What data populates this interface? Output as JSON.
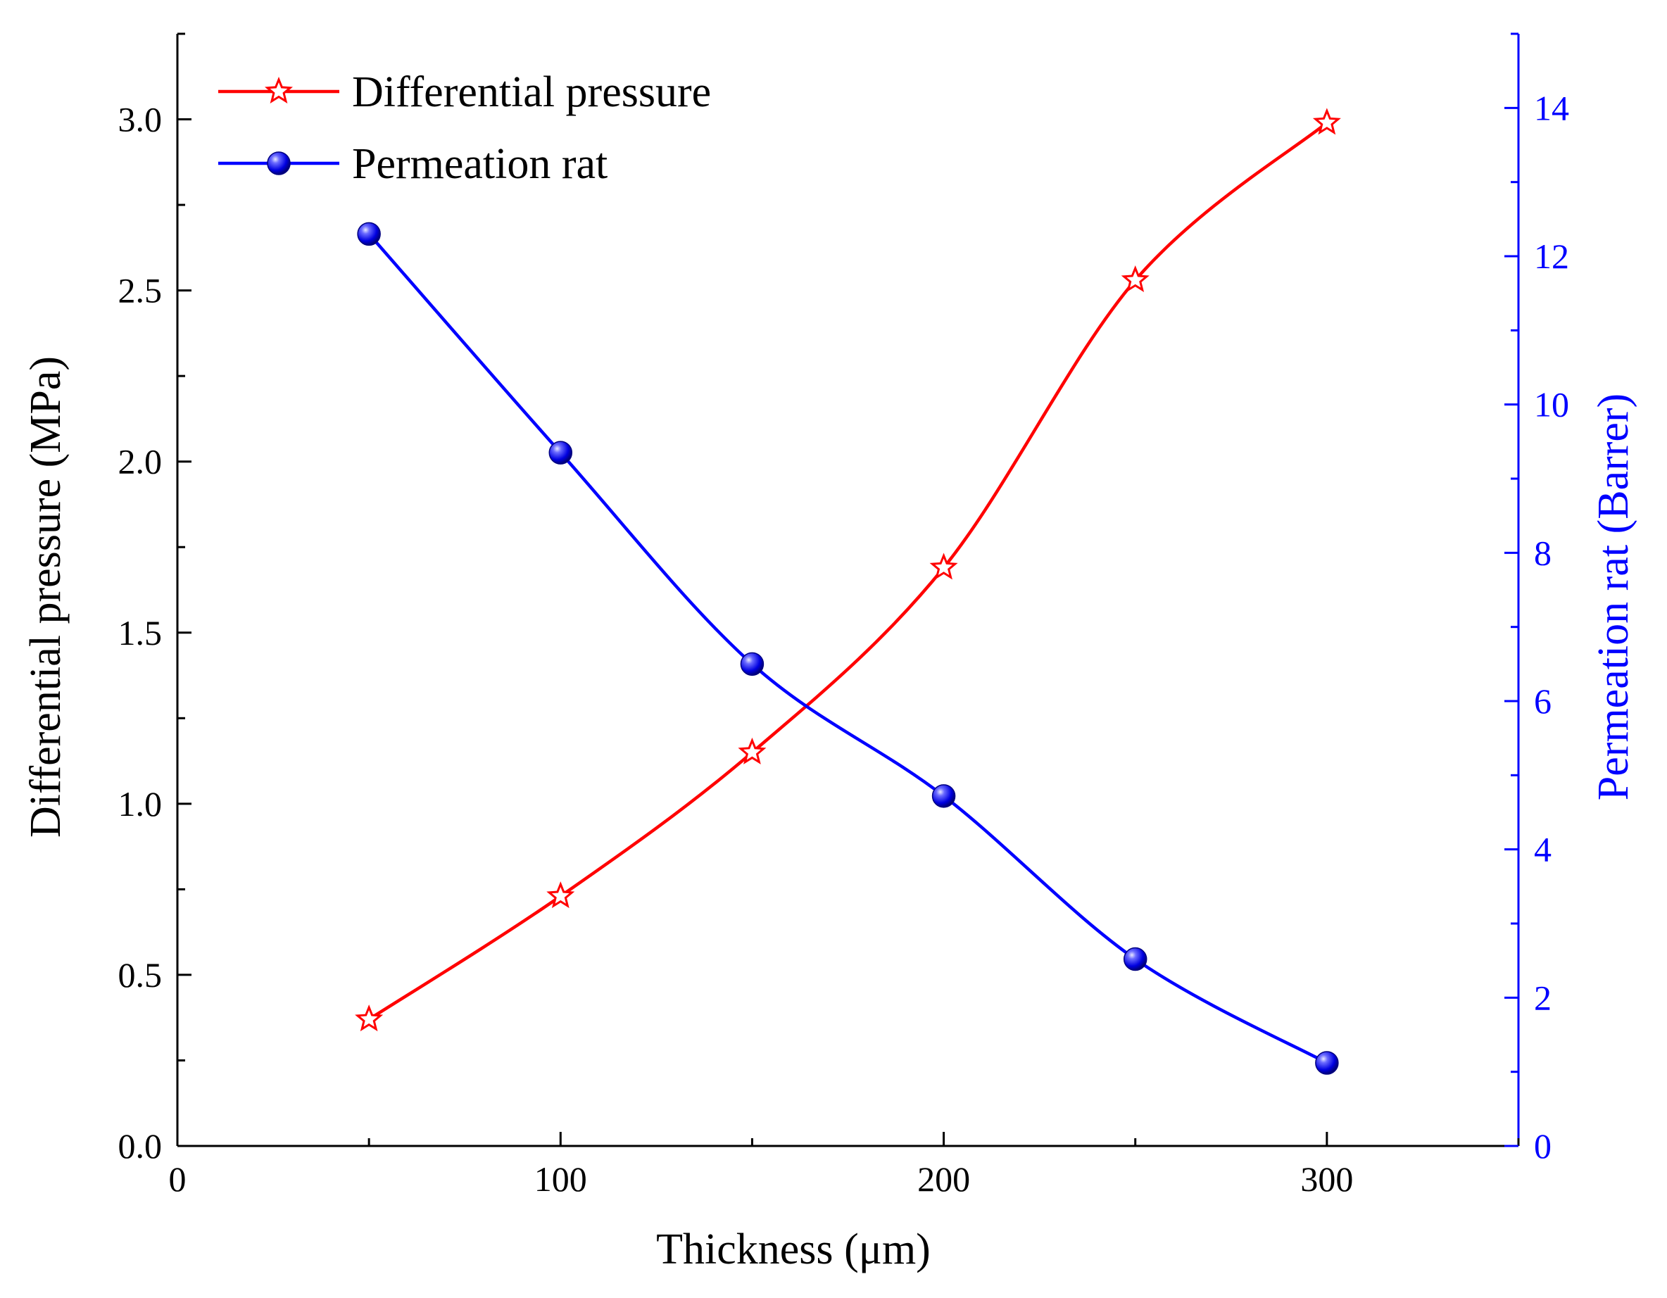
{
  "chart_data": {
    "type": "line",
    "x": [
      50,
      100,
      150,
      200,
      250,
      300
    ],
    "xlabel": "Thickness (μm)",
    "xlim": [
      0,
      350
    ],
    "xticks": [
      0,
      100,
      200,
      300
    ],
    "xtick_labels": [
      "0",
      "100",
      "200",
      "300"
    ],
    "ylabel_left": "Differential pressure (MPa)",
    "ylim_left": [
      0,
      3.25
    ],
    "yticks_left": [
      0.0,
      0.5,
      1.0,
      1.5,
      2.0,
      2.5,
      3.0
    ],
    "ytick_labels_left": [
      "0.0",
      "0.5",
      "1.0",
      "1.5",
      "2.0",
      "2.5",
      "3.0"
    ],
    "ylabel_right": "Permeation rat (Barrer)",
    "ylim_right": [
      0,
      15
    ],
    "yticks_right": [
      0,
      2,
      4,
      6,
      8,
      10,
      12,
      14
    ],
    "ytick_labels_right": [
      "0",
      "2",
      "4",
      "6",
      "8",
      "10",
      "12",
      "14"
    ],
    "legend_position": "top-left",
    "series": [
      {
        "name": "Differential pressure",
        "axis": "left",
        "marker": "star",
        "color": "#ff0000",
        "values": [
          0.37,
          0.73,
          1.15,
          1.69,
          2.53,
          2.99
        ]
      },
      {
        "name": "Permeation rat",
        "axis": "right",
        "marker": "circle",
        "color": "#0000ff",
        "values": [
          12.3,
          9.35,
          6.5,
          4.72,
          2.52,
          1.12
        ]
      }
    ],
    "colors": {
      "left_axis": "#000000",
      "right_axis": "#0000ff"
    }
  }
}
